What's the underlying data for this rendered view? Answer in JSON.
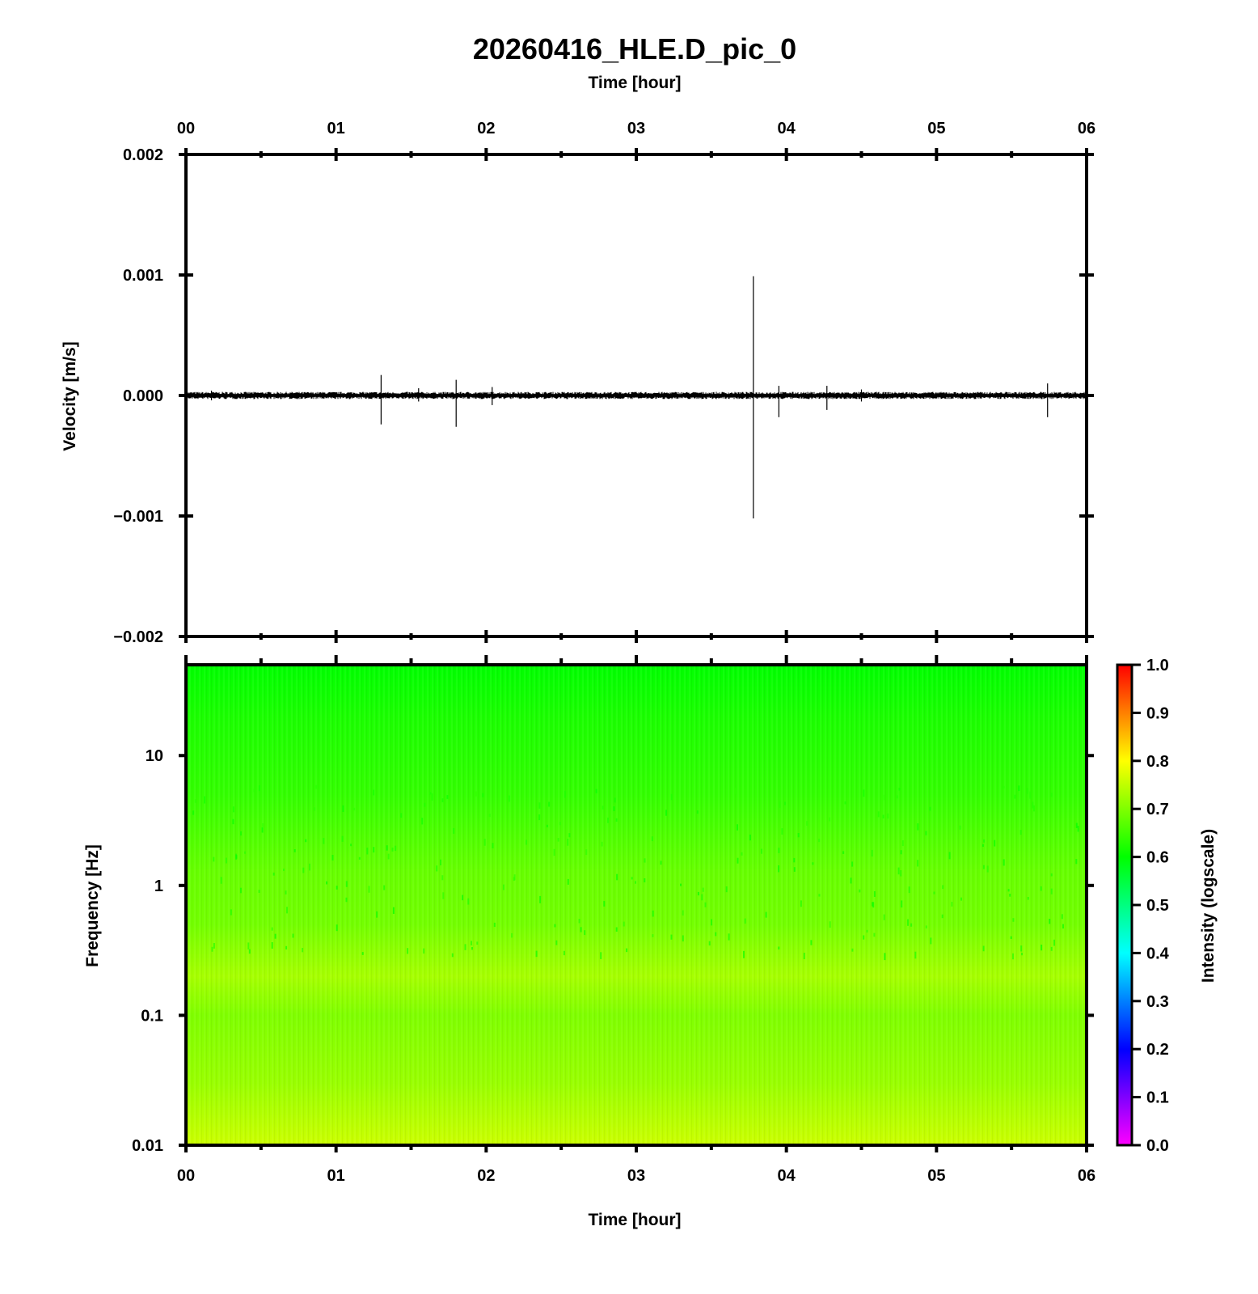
{
  "figure": {
    "title": "20260416_HLE.D_pic_0"
  },
  "chart_data": [
    {
      "type": "line",
      "panel": "waveform",
      "xlabel": "Time [hour]",
      "ylabel": "Velocity [m/s]",
      "x_axis_position": "top",
      "xlim": [
        0,
        6
      ],
      "ylim": [
        -0.002,
        0.002
      ],
      "x_ticks": [
        "00",
        "01",
        "02",
        "03",
        "04",
        "05",
        "06"
      ],
      "y_ticks": [
        "0.002",
        "0.001",
        "0.000",
        "−0.001",
        "−0.002"
      ],
      "y_tick_values": [
        0.002,
        0.001,
        0.0,
        -0.001,
        -0.002
      ],
      "noise_amplitude": 2e-05,
      "spikes": [
        {
          "x": 1.3,
          "y_max": 0.00017,
          "y_min": -0.00024
        },
        {
          "x": 1.8,
          "y_max": 0.00013,
          "y_min": -0.00026
        },
        {
          "x": 1.55,
          "y_max": 6e-05,
          "y_min": -5e-05
        },
        {
          "x": 2.04,
          "y_max": 7e-05,
          "y_min": -8e-05
        },
        {
          "x": 3.78,
          "y_max": 0.00099,
          "y_min": -0.00102
        },
        {
          "x": 3.95,
          "y_max": 8e-05,
          "y_min": -0.00018
        },
        {
          "x": 4.27,
          "y_max": 8e-05,
          "y_min": -0.00012
        },
        {
          "x": 5.74,
          "y_max": 0.0001,
          "y_min": -0.00018
        },
        {
          "x": 4.5,
          "y_max": 5e-05,
          "y_min": -5e-05
        },
        {
          "x": 0.17,
          "y_max": 4e-05,
          "y_min": -4e-05
        }
      ],
      "line_color": "#000000"
    },
    {
      "type": "heatmap",
      "panel": "spectrogram",
      "xlabel": "Time [hour]",
      "ylabel": "Frequency [Hz]",
      "xlim": [
        0,
        6
      ],
      "ylim": [
        0.01,
        50
      ],
      "y_scale": "log",
      "x_ticks": [
        "00",
        "01",
        "02",
        "03",
        "04",
        "05",
        "06"
      ],
      "y_ticks": [
        "10",
        "1",
        "0.1",
        "0.01"
      ],
      "y_tick_values": [
        10,
        1,
        0.1,
        0.01
      ],
      "colorbar": {
        "label": "Intensity (logscale)",
        "range": [
          0.0,
          1.0
        ],
        "ticks": [
          "1.0",
          "0.9",
          "0.8",
          "0.7",
          "0.6",
          "0.5",
          "0.4",
          "0.3",
          "0.2",
          "0.1",
          "0.0"
        ],
        "tick_values": [
          1.0,
          0.9,
          0.8,
          0.7,
          0.6,
          0.5,
          0.4,
          0.3,
          0.2,
          0.1,
          0.0
        ],
        "colormap": [
          "#ff00ff",
          "#0000ff",
          "#00ffff",
          "#00ff00",
          "#ffff00",
          "#ff8000",
          "#ff0000"
        ],
        "colormap_stops": [
          0.0,
          0.2,
          0.4,
          0.6,
          0.8,
          0.9,
          1.0
        ]
      },
      "intensity_profile": [
        {
          "freq": 50,
          "intensity": 0.6
        },
        {
          "freq": 20,
          "intensity": 0.62
        },
        {
          "freq": 5,
          "intensity": 0.64
        },
        {
          "freq": 1.3,
          "intensity": 0.68
        },
        {
          "freq": 0.5,
          "intensity": 0.69
        },
        {
          "freq": 0.2,
          "intensity": 0.73
        },
        {
          "freq": 0.1,
          "intensity": 0.7
        },
        {
          "freq": 0.03,
          "intensity": 0.72
        },
        {
          "freq": 0.01,
          "intensity": 0.76
        }
      ]
    }
  ]
}
